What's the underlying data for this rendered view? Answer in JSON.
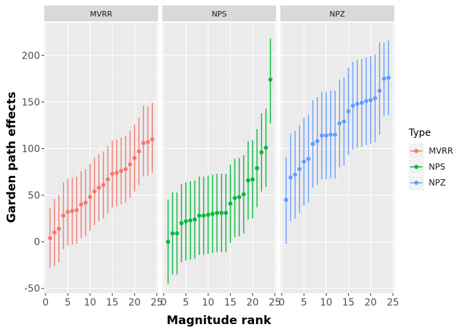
{
  "chart_data": {
    "type": "scatter",
    "title": "",
    "xlabel": "Magnitude rank",
    "ylabel": "Garden path effects",
    "xlim": [
      0,
      25
    ],
    "ylim": [
      -55,
      235
    ],
    "x_ticks": [
      0,
      5,
      10,
      15,
      20,
      25
    ],
    "x_tick_labels": [
      "0",
      "5",
      "10",
      "15",
      "20",
      "25"
    ],
    "y_ticks": [
      -50,
      0,
      50,
      100,
      150,
      200
    ],
    "y_tick_labels": [
      "-50",
      "0",
      "50",
      "100",
      "150",
      "200"
    ],
    "grid": true,
    "legend": {
      "title": "Type",
      "position": "right",
      "entries": [
        "MVRR",
        "NPS",
        "NPZ"
      ]
    },
    "colors": {
      "MVRR": "#F8766D",
      "NPS": "#00BA38",
      "NPZ": "#619CFF"
    },
    "panels": [
      {
        "name": "MVRR",
        "color": "#F8766D",
        "x": [
          1,
          2,
          3,
          4,
          5,
          6,
          7,
          8,
          9,
          10,
          11,
          12,
          13,
          14,
          15,
          16,
          17,
          18,
          19,
          20,
          21,
          22,
          23,
          24
        ],
        "y": [
          4,
          10,
          14,
          28,
          32,
          33,
          34,
          40,
          42,
          48,
          54,
          58,
          61,
          67,
          73,
          74,
          76,
          78,
          83,
          90,
          97,
          106,
          107,
          110
        ],
        "lower": [
          -28,
          -26,
          -22,
          -8,
          -4,
          -3,
          -2,
          4,
          6,
          12,
          18,
          22,
          25,
          31,
          37,
          38,
          40,
          42,
          47,
          54,
          61,
          70,
          71,
          74
        ],
        "upper": [
          36,
          46,
          50,
          64,
          68,
          69,
          70,
          76,
          78,
          84,
          90,
          94,
          97,
          103,
          109,
          110,
          112,
          114,
          119,
          126,
          133,
          146,
          145,
          149
        ]
      },
      {
        "name": "NPS",
        "color": "#00BA38",
        "x": [
          1,
          2,
          3,
          4,
          5,
          6,
          7,
          8,
          9,
          10,
          11,
          12,
          13,
          14,
          15,
          16,
          17,
          18,
          19,
          20,
          21,
          22,
          23,
          24
        ],
        "y": [
          0,
          9,
          9,
          20,
          22,
          23,
          24,
          28,
          28,
          29,
          30,
          31,
          31,
          31,
          41,
          47,
          48,
          51,
          66,
          67,
          79,
          96,
          101,
          174
        ],
        "lower": [
          -45,
          -35,
          -35,
          -22,
          -20,
          -19,
          -18,
          -14,
          -14,
          -13,
          -12,
          -11,
          -11,
          -11,
          -1,
          5,
          6,
          9,
          24,
          25,
          37,
          54,
          59,
          127
        ],
        "upper": [
          45,
          53,
          53,
          62,
          64,
          65,
          66,
          70,
          70,
          71,
          72,
          73,
          73,
          73,
          83,
          89,
          90,
          93,
          108,
          109,
          121,
          138,
          143,
          218
        ]
      },
      {
        "name": "NPZ",
        "color": "#619CFF",
        "x": [
          1,
          2,
          3,
          4,
          5,
          6,
          7,
          8,
          9,
          10,
          11,
          12,
          13,
          14,
          15,
          16,
          17,
          18,
          19,
          20,
          21,
          22,
          23,
          24
        ],
        "y": [
          45,
          69,
          72,
          78,
          86,
          89,
          105,
          108,
          114,
          114,
          115,
          115,
          127,
          129,
          140,
          146,
          148,
          149,
          151,
          152,
          154,
          162,
          175,
          176
        ],
        "lower": [
          -2,
          22,
          25,
          31,
          39,
          42,
          58,
          61,
          67,
          67,
          68,
          68,
          80,
          82,
          93,
          99,
          101,
          102,
          104,
          105,
          107,
          115,
          135,
          136
        ],
        "upper": [
          91,
          116,
          119,
          125,
          133,
          136,
          152,
          155,
          161,
          161,
          162,
          162,
          174,
          176,
          187,
          193,
          195,
          196,
          198,
          199,
          201,
          214,
          214,
          216
        ]
      }
    ]
  }
}
